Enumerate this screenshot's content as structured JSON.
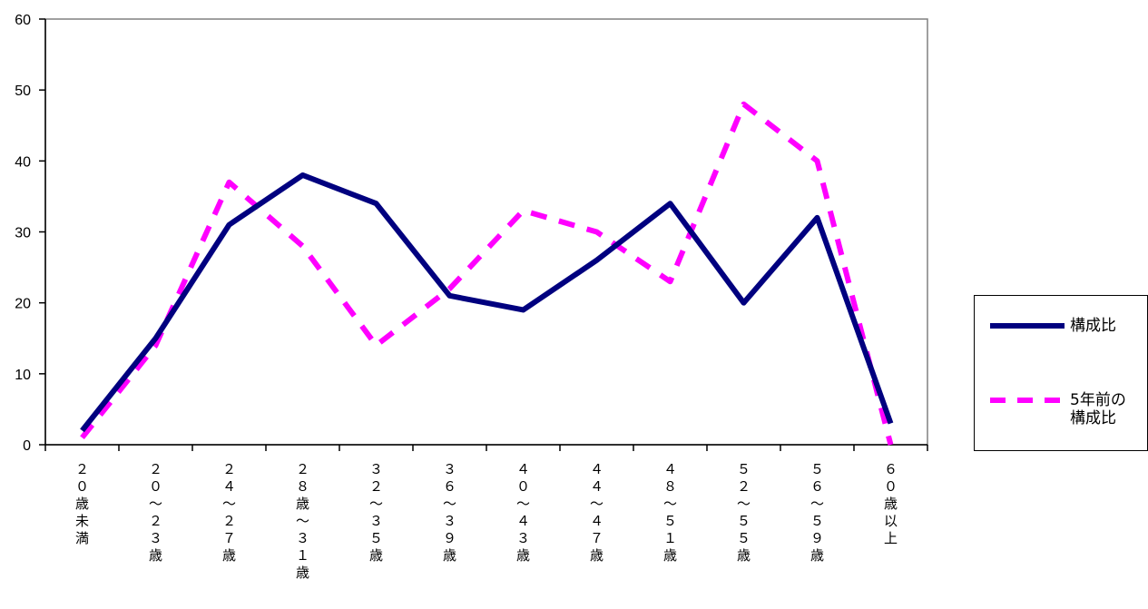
{
  "chart_data": {
    "type": "line",
    "title": "",
    "xlabel": "",
    "ylabel": "",
    "ylim": [
      0,
      60
    ],
    "yticks": [
      0,
      10,
      20,
      30,
      40,
      50,
      60
    ],
    "grid": false,
    "legend_position": "right",
    "categories": [
      "２０歳未満",
      "２０～２３歳",
      "２４～２７歳",
      "２８歳～３１歳",
      "３２～３５歳",
      "３６～３９歳",
      "４０～４３歳",
      "４４～４７歳",
      "４８～５１歳",
      "５２～５５歳",
      "５６～５９歳",
      "６０歳以上"
    ],
    "series": [
      {
        "name": "構成比",
        "values": [
          2,
          15,
          31,
          38,
          34,
          21,
          19,
          26,
          34,
          20,
          32,
          3
        ],
        "color": "#00007f",
        "style": "solid"
      },
      {
        "name": "5年前の構成比",
        "values": [
          1,
          14,
          37,
          28,
          14,
          22,
          33,
          30,
          23,
          48,
          40,
          0
        ],
        "color": "#ff00ff",
        "style": "dashed"
      }
    ]
  },
  "legend": {
    "items": [
      {
        "lines": [
          "構成比"
        ]
      },
      {
        "lines": [
          "5年前の",
          "構成比"
        ]
      }
    ]
  }
}
